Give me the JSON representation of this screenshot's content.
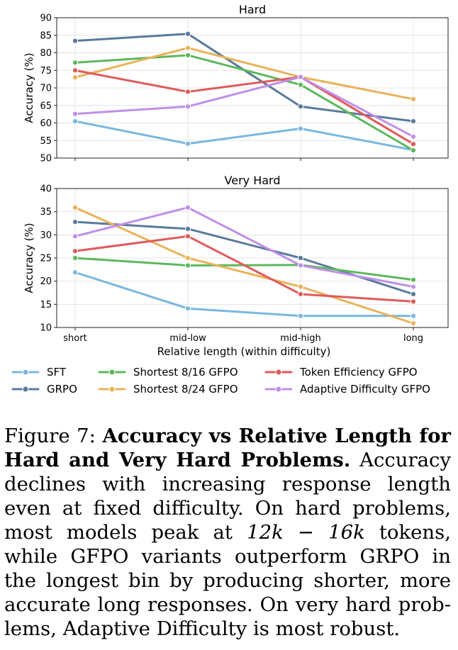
{
  "chart_data": [
    {
      "type": "line",
      "title": "Hard",
      "xlabel": "",
      "ylabel": "Accuracy (%)",
      "categories": [
        "short",
        "mid-low",
        "mid-high",
        "long"
      ],
      "ylim": [
        50,
        90
      ],
      "yticks": [
        50,
        55,
        60,
        65,
        70,
        75,
        80,
        85,
        90
      ],
      "grid": true,
      "series": [
        {
          "name": "SFT",
          "color": "#7ab8e0",
          "values": [
            60.5,
            54.1,
            58.4,
            52.3
          ]
        },
        {
          "name": "GRPO",
          "color": "#5a7a9c",
          "values": [
            83.4,
            85.4,
            64.7,
            60.5
          ]
        },
        {
          "name": "Shortest 8/16 GFPO",
          "color": "#5cb85c",
          "values": [
            77.2,
            79.3,
            70.9,
            52.2
          ]
        },
        {
          "name": "Shortest 8/24 GFPO",
          "color": "#e8b35a",
          "values": [
            73.0,
            81.4,
            73.1,
            66.8
          ]
        },
        {
          "name": "Token Efficiency GFPO",
          "color": "#e05a5a",
          "values": [
            75.0,
            68.9,
            73.1,
            54.0
          ]
        },
        {
          "name": "Adaptive Difficulty GFPO",
          "color": "#c08fe8",
          "values": [
            62.6,
            64.7,
            73.1,
            56.1
          ]
        }
      ]
    },
    {
      "type": "line",
      "title": "Very Hard",
      "xlabel": "Relative length (within difficulty)",
      "ylabel": "Accuracy (%)",
      "categories": [
        "short",
        "mid-low",
        "mid-high",
        "long"
      ],
      "ylim": [
        10,
        40
      ],
      "yticks": [
        10,
        15,
        20,
        25,
        30,
        35,
        40
      ],
      "grid": true,
      "series": [
        {
          "name": "SFT",
          "color": "#7ab8e0",
          "values": [
            21.9,
            14.1,
            12.5,
            12.5
          ]
        },
        {
          "name": "GRPO",
          "color": "#5a7a9c",
          "values": [
            32.8,
            31.3,
            25.0,
            17.2
          ]
        },
        {
          "name": "Shortest 8/16 GFPO",
          "color": "#5cb85c",
          "values": [
            25.0,
            23.4,
            23.5,
            20.3
          ]
        },
        {
          "name": "Shortest 8/24 GFPO",
          "color": "#e8b35a",
          "values": [
            35.9,
            25.0,
            18.8,
            10.9
          ]
        },
        {
          "name": "Token Efficiency GFPO",
          "color": "#e05a5a",
          "values": [
            26.5,
            29.7,
            17.2,
            15.6
          ]
        },
        {
          "name": "Adaptive Difficulty GFPO",
          "color": "#c08fe8",
          "values": [
            29.7,
            35.9,
            23.4,
            18.8
          ]
        }
      ]
    }
  ],
  "legend": {
    "placement": "bottom",
    "items": [
      {
        "label": "SFT",
        "color": "#7ab8e0"
      },
      {
        "label": "Shortest 8/16 GFPO",
        "color": "#5cb85c"
      },
      {
        "label": "Token Efficiency GFPO",
        "color": "#e05a5a"
      },
      {
        "label": "GRPO",
        "color": "#5a7a9c"
      },
      {
        "label": "Shortest 8/24 GFPO",
        "color": "#e8b35a"
      },
      {
        "label": "Adaptive Difficulty GFPO",
        "color": "#c08fe8"
      }
    ]
  },
  "caption": {
    "prefix": "Figure 7: ",
    "bold": "Accuracy vs Relative Length for Hard and Very Hard Problems.",
    "body_1": " Accu­racy declines with increasing response length even at fixed difficulty. On hard prob­lems, most models peak at ",
    "math_a": "12k",
    "math_op": " − ",
    "math_b": "16k",
    "body_2": " tokens, while GFPO variants outperform GRPO in the longest bin by producing shorter, more accurate long responses. On very hard prob­lems, Adaptive Difficulty is most robust."
  }
}
